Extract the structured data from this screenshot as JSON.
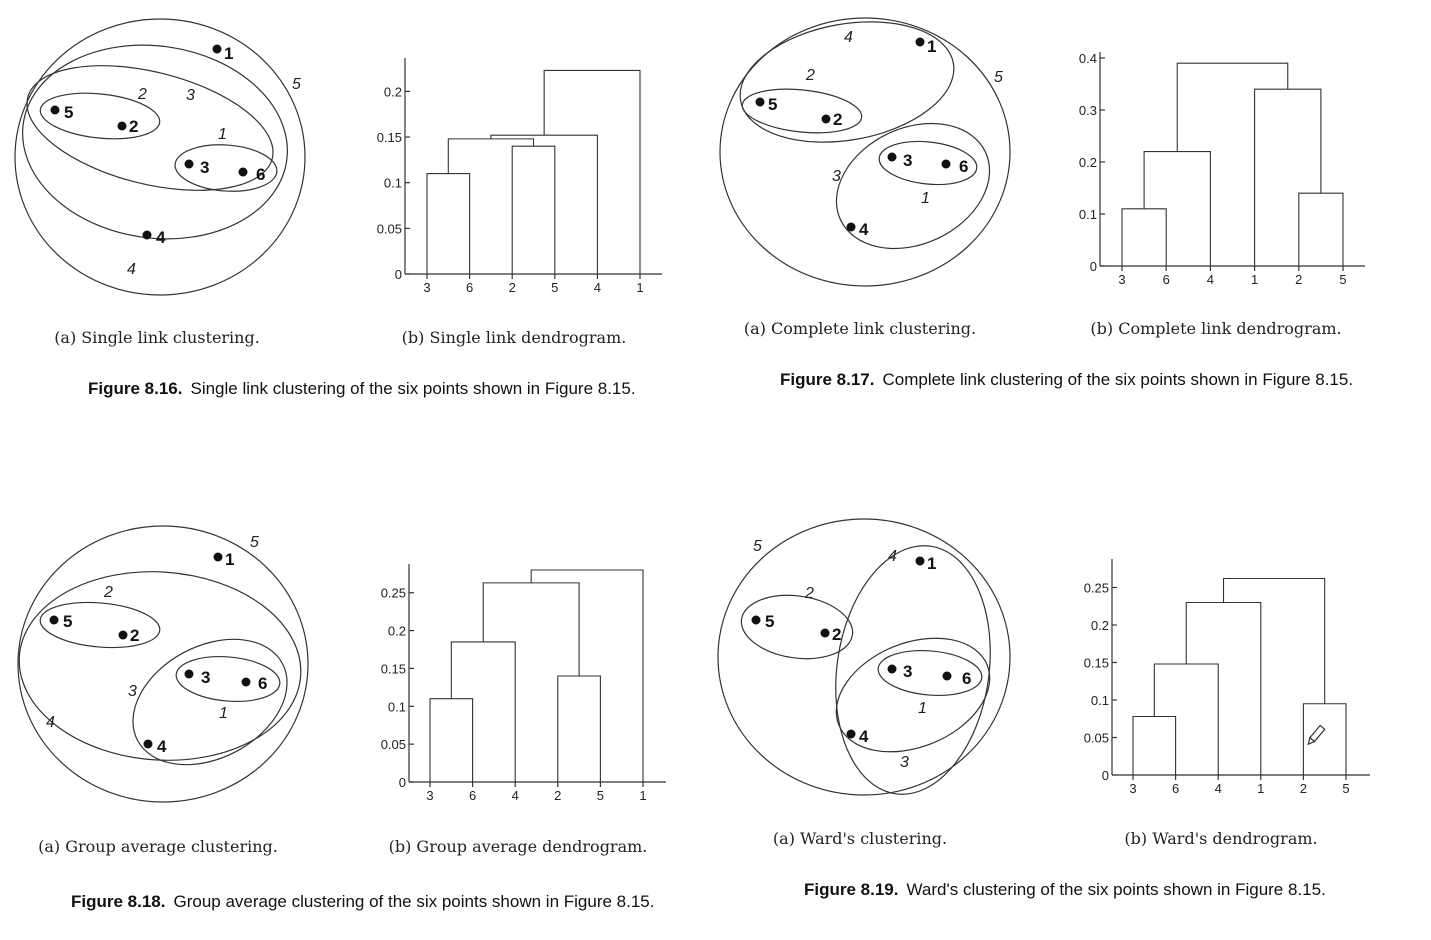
{
  "figures": [
    {
      "id": "fig816",
      "fig_label": "Figure 8.16.",
      "fig_text": "Single link clustering of the six points shown in Figure 8.15.",
      "cap_a": "(a) Single link clustering.",
      "cap_b": "(b) Single link dendrogram.",
      "points": [
        "1",
        "2",
        "3",
        "4",
        "5",
        "6"
      ],
      "cluster_labels": [
        "1",
        "2",
        "3",
        "4",
        "5"
      ]
    },
    {
      "id": "fig817",
      "fig_label": "Figure 8.17.",
      "fig_text": "Complete link clustering of the six points shown in Figure 8.15.",
      "cap_a": "(a) Complete link clustering.",
      "cap_b": "(b) Complete link dendrogram.",
      "points": [
        "1",
        "2",
        "3",
        "4",
        "5",
        "6"
      ],
      "cluster_labels": [
        "1",
        "2",
        "3",
        "4",
        "5"
      ]
    },
    {
      "id": "fig818",
      "fig_label": "Figure 8.18.",
      "fig_text": "Group average clustering of the six points shown in Figure 8.15.",
      "cap_a": "(a) Group average clustering.",
      "cap_b": "(b) Group average dendrogram.",
      "points": [
        "1",
        "2",
        "3",
        "4",
        "5",
        "6"
      ],
      "cluster_labels": [
        "1",
        "2",
        "3",
        "4",
        "5"
      ]
    },
    {
      "id": "fig819",
      "fig_label": "Figure 8.19.",
      "fig_text": "Ward's clustering of the six points shown in Figure 8.15.",
      "cap_a": "(a) Ward's clustering.",
      "cap_b": "(b) Ward's dendrogram.",
      "points": [
        "1",
        "2",
        "3",
        "4",
        "5",
        "6"
      ],
      "cluster_labels": [
        "1",
        "2",
        "3",
        "4",
        "5"
      ]
    }
  ],
  "chart_data": [
    {
      "type": "dendrogram",
      "title": "(b) Single link dendrogram.",
      "leaves": [
        "3",
        "6",
        "2",
        "5",
        "4",
        "1"
      ],
      "yticks": [
        "0",
        "0.05",
        "0.1",
        "0.15",
        "0.2"
      ],
      "ylim": [
        0,
        0.23
      ],
      "merges": [
        {
          "children": [
            "3",
            "6"
          ],
          "height": 0.11
        },
        {
          "children": [
            "2",
            "5"
          ],
          "height": 0.14
        },
        {
          "children": [
            "3-6",
            "2-5"
          ],
          "height": 0.148
        },
        {
          "children": [
            "3-6-2-5",
            "4"
          ],
          "height": 0.152
        },
        {
          "children": [
            "3-6-2-5-4",
            "1"
          ],
          "height": 0.223
        }
      ]
    },
    {
      "type": "dendrogram",
      "title": "(b) Complete link dendrogram.",
      "leaves": [
        "3",
        "6",
        "4",
        "1",
        "2",
        "5"
      ],
      "yticks": [
        "0",
        "0.1",
        "0.2",
        "0.3",
        "0.4"
      ],
      "ylim": [
        0,
        0.4
      ],
      "merges": [
        {
          "children": [
            "3",
            "6"
          ],
          "height": 0.11
        },
        {
          "children": [
            "2",
            "5"
          ],
          "height": 0.14
        },
        {
          "children": [
            "3-6",
            "4"
          ],
          "height": 0.22
        },
        {
          "children": [
            "1",
            "2-5"
          ],
          "height": 0.34
        },
        {
          "children": [
            "3-6-4",
            "1-2-5"
          ],
          "height": 0.39
        }
      ]
    },
    {
      "type": "dendrogram",
      "title": "(b) Group average dendrogram.",
      "leaves": [
        "3",
        "6",
        "4",
        "2",
        "5",
        "1"
      ],
      "yticks": [
        "0",
        "0.05",
        "0.1",
        "0.15",
        "0.2",
        "0.25"
      ],
      "ylim": [
        0,
        0.28
      ],
      "merges": [
        {
          "children": [
            "3",
            "6"
          ],
          "height": 0.11
        },
        {
          "children": [
            "2",
            "5"
          ],
          "height": 0.14
        },
        {
          "children": [
            "3-6",
            "4"
          ],
          "height": 0.185
        },
        {
          "children": [
            "3-6-4",
            "2-5"
          ],
          "height": 0.263
        },
        {
          "children": [
            "3-6-4-2-5",
            "1"
          ],
          "height": 0.28
        }
      ]
    },
    {
      "type": "dendrogram",
      "title": "(b) Ward's dendrogram.",
      "leaves": [
        "3",
        "6",
        "4",
        "1",
        "2",
        "5"
      ],
      "yticks": [
        "0",
        "0.05",
        "0.1",
        "0.15",
        "0.2",
        "0.25"
      ],
      "ylim": [
        0,
        0.28
      ],
      "merges": [
        {
          "children": [
            "3",
            "6"
          ],
          "height": 0.078
        },
        {
          "children": [
            "2",
            "5"
          ],
          "height": 0.095
        },
        {
          "children": [
            "3-6",
            "4"
          ],
          "height": 0.148
        },
        {
          "children": [
            "3-6-4",
            "1"
          ],
          "height": 0.23
        },
        {
          "children": [
            "3-6-4-1",
            "2-5"
          ],
          "height": 0.262
        }
      ]
    }
  ]
}
